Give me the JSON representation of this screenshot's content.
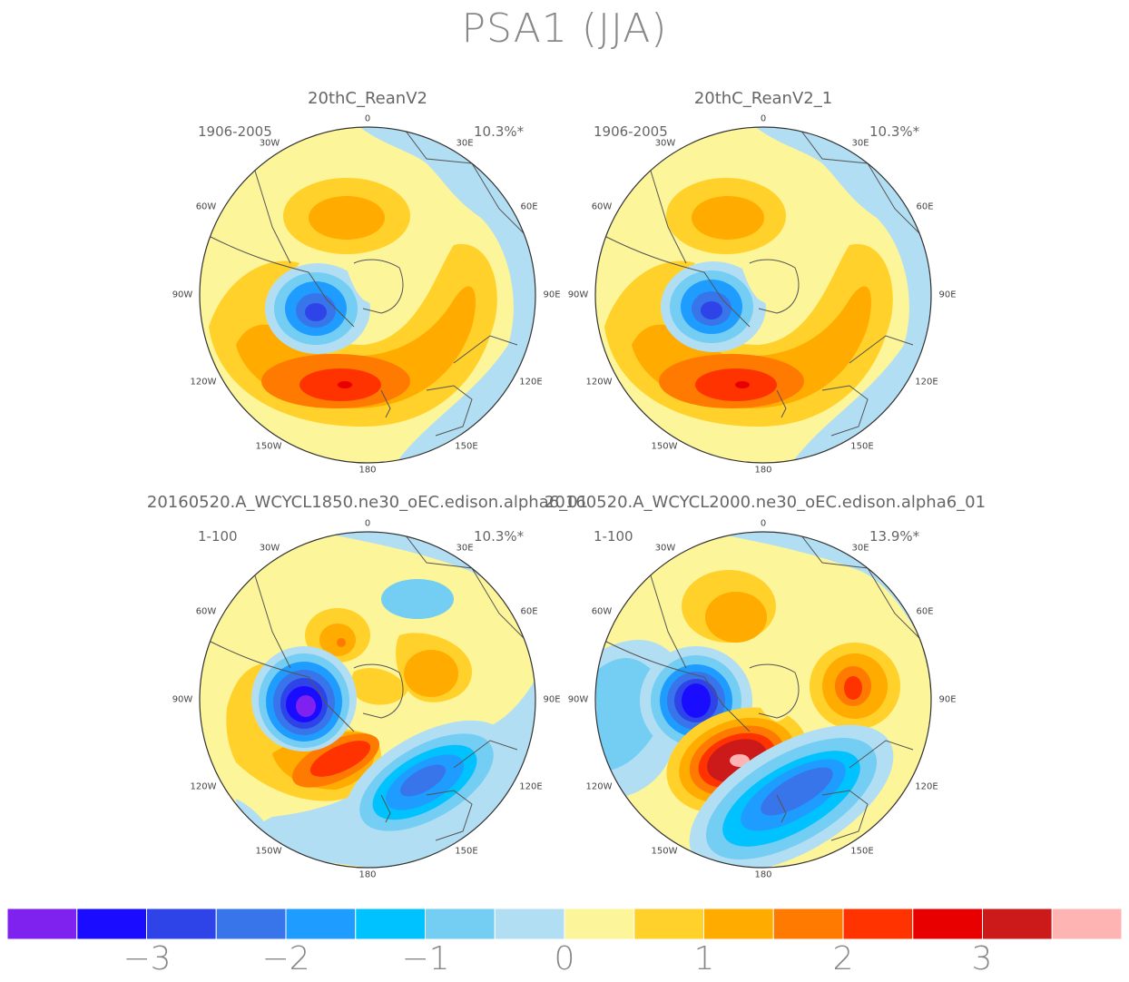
{
  "title": "PSA1 (JJA)",
  "panels": [
    {
      "title": "20thC_ReanV2",
      "period": "1906-2005",
      "variance": "10.3%*"
    },
    {
      "title": "20thC_ReanV2_1",
      "period": "1906-2005",
      "variance": "10.3%*"
    },
    {
      "title": "20160520.A_WCYCL1850.ne30_oEC.edison.alpha6_01",
      "period": "1-100",
      "variance": "10.3%*"
    },
    {
      "title": "20160520.A_WCYCL2000.ne30_oEC.edison.alpha6_01",
      "period": "1-100",
      "variance": "13.9%*"
    }
  ],
  "longitude_labels": {
    "top": "0",
    "bottom": "180",
    "w30": "30W",
    "w60": "60W",
    "w90": "90W",
    "w120": "120W",
    "w150": "150W",
    "e30": "30E",
    "e60": "60E",
    "e90": "90E",
    "e120": "120E",
    "e150": "150E"
  },
  "colorbar": {
    "colors": [
      "#8022ef",
      "#1a0cff",
      "#2e44e8",
      "#3874ea",
      "#1e9cff",
      "#00c2ff",
      "#74cdf2",
      "#b2def4",
      "#fdf59a",
      "#ffd12a",
      "#ffab00",
      "#ff7a00",
      "#ff3300",
      "#e80000",
      "#cc1a1a",
      "#ffb4b4"
    ],
    "tick_labels": [
      "−3",
      "−2",
      "−1",
      "0",
      "1",
      "2",
      "3"
    ]
  }
}
